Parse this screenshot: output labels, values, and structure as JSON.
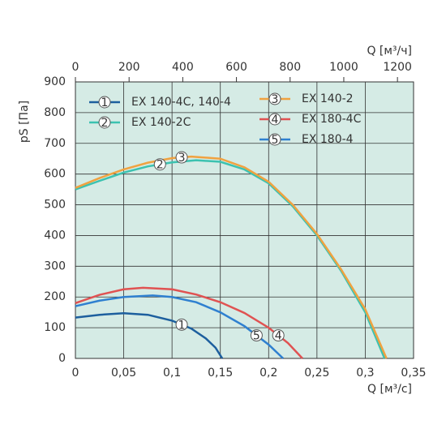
{
  "chart_data": {
    "type": "line",
    "x_label": "Q [м³/с]",
    "x2_label": "Q [м³/ч]",
    "y_label": "pS [Па]",
    "xlim": [
      0,
      0.35
    ],
    "xticks": [
      0,
      {
        "value": 0.05,
        "label": "0,05"
      },
      {
        "value": 0.1,
        "label": "0,1"
      },
      {
        "value": 0.15,
        "label": "0,15"
      },
      {
        "value": 0.2,
        "label": "0,2"
      },
      {
        "value": 0.25,
        "label": "0,25"
      },
      {
        "value": 0.3,
        "label": "0,3"
      },
      {
        "value": 0.35,
        "label": "0,35"
      }
    ],
    "x2lim": [
      0,
      1260
    ],
    "x2ticks": [
      0,
      200,
      400,
      600,
      800,
      1000,
      1200
    ],
    "ylim": [
      0,
      900
    ],
    "yticks": [
      0,
      100,
      200,
      300,
      400,
      500,
      600,
      700,
      800,
      900
    ],
    "grid": true,
    "background": "#d5ebe5",
    "series": [
      {
        "name": "EX 140-4C, 140-4",
        "marker": "1",
        "color": "#1d5f9e",
        "x": [
          0,
          0.025,
          0.05,
          0.075,
          0.1,
          0.12,
          0.135,
          0.145,
          0.152
        ],
        "values": [
          133,
          142,
          147,
          142,
          123,
          97,
          65,
          35,
          0
        ]
      },
      {
        "name": "EX 140-2C",
        "marker": "2",
        "color": "#3cc2b0",
        "x": [
          0,
          0.025,
          0.05,
          0.075,
          0.1,
          0.125,
          0.15,
          0.175,
          0.2,
          0.225,
          0.25,
          0.275,
          0.3,
          0.32
        ],
        "values": [
          550,
          578,
          605,
          625,
          638,
          645,
          640,
          615,
          570,
          495,
          400,
          285,
          150,
          0
        ]
      },
      {
        "name": "EX 140-2",
        "marker": "3",
        "color": "#f0a240",
        "x": [
          0,
          0.025,
          0.05,
          0.075,
          0.1,
          0.12,
          0.15,
          0.175,
          0.2,
          0.225,
          0.25,
          0.275,
          0.3,
          0.322
        ],
        "values": [
          555,
          587,
          615,
          637,
          652,
          657,
          650,
          622,
          575,
          500,
          405,
          290,
          160,
          0
        ]
      },
      {
        "name": "EX 180-4C",
        "marker": "4",
        "color": "#e05252",
        "x": [
          0,
          0.025,
          0.05,
          0.07,
          0.1,
          0.125,
          0.15,
          0.175,
          0.2,
          0.22,
          0.235
        ],
        "values": [
          180,
          207,
          225,
          230,
          225,
          208,
          183,
          148,
          100,
          50,
          0
        ]
      },
      {
        "name": "EX 180-4",
        "marker": "5",
        "color": "#2f80d0",
        "x": [
          0,
          0.025,
          0.05,
          0.08,
          0.1,
          0.125,
          0.15,
          0.175,
          0.2,
          0.215
        ],
        "values": [
          170,
          188,
          200,
          205,
          200,
          183,
          150,
          105,
          45,
          0
        ]
      }
    ]
  }
}
